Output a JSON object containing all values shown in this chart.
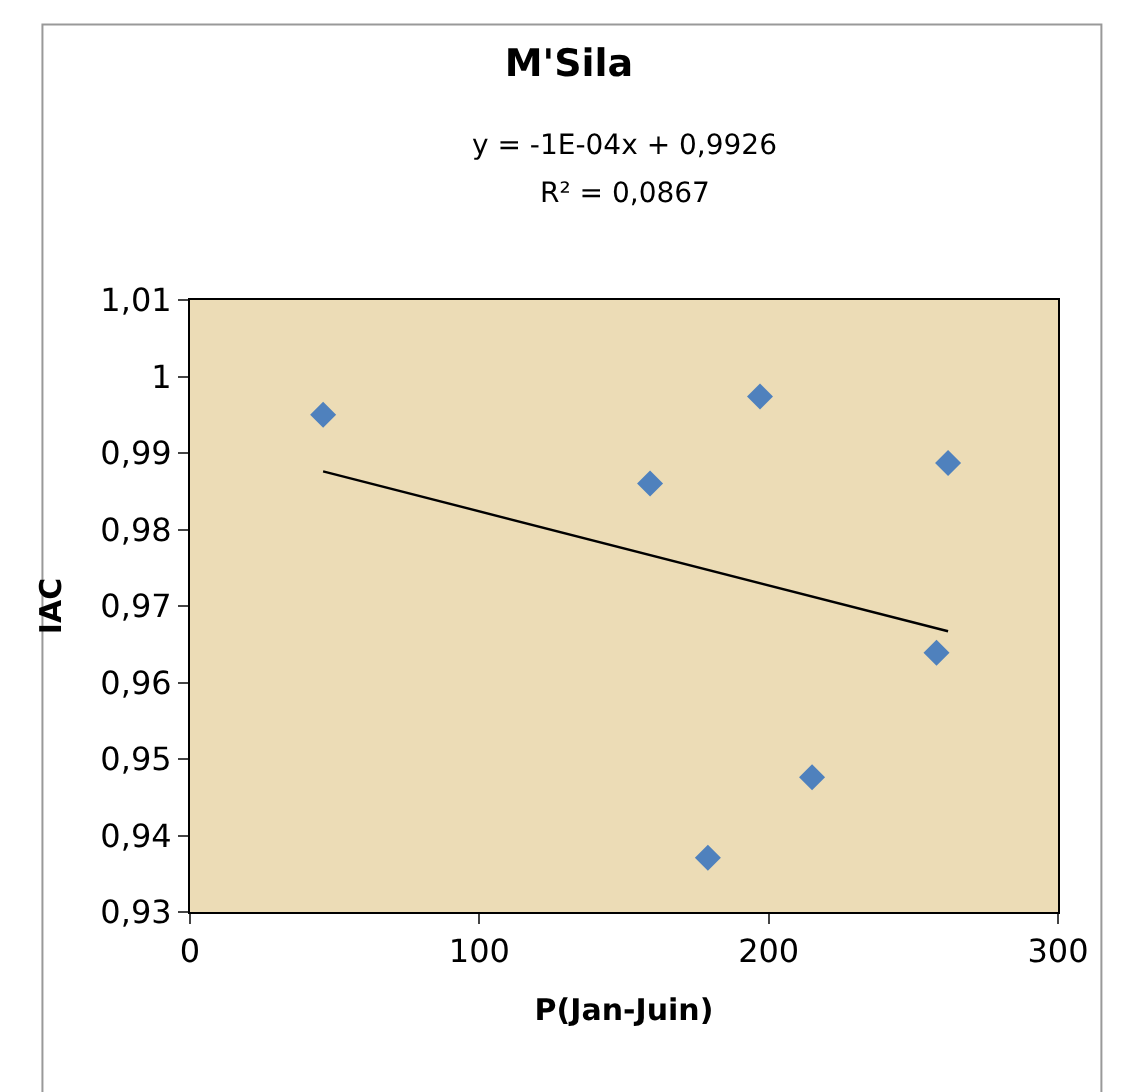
{
  "chart_data": {
    "type": "scatter",
    "title": "M'Sila",
    "xlabel": "P(Jan-Juin)",
    "ylabel": "IAC",
    "annotations": [
      "y = -1E-04x + 0,9926",
      "R² = 0,0867"
    ],
    "marker": "diamond",
    "grid": false,
    "xlim": [
      0,
      300
    ],
    "xticks": [
      0,
      100,
      200,
      300
    ],
    "ylim": [
      0.93,
      1.01
    ],
    "yticks": [
      {
        "value": 0.93,
        "label": "0,93"
      },
      {
        "value": 0.94,
        "label": "0,94"
      },
      {
        "value": 0.95,
        "label": "0,95"
      },
      {
        "value": 0.96,
        "label": "0,96"
      },
      {
        "value": 0.97,
        "label": "0,97"
      },
      {
        "value": 0.98,
        "label": "0,98"
      },
      {
        "value": 0.99,
        "label": "0,99"
      },
      {
        "value": 1,
        "label": "1"
      },
      {
        "value": 1.01,
        "label": "1,01"
      }
    ],
    "series": [
      {
        "color": "#4f81bd",
        "x": [
          46,
          159,
          197,
          262,
          258,
          215,
          179
        ],
        "values": [
          0.995,
          0.986,
          0.9974,
          0.9887,
          0.9639,
          0.9476,
          0.9371
        ]
      },
      {
        "type": "line",
        "marker": "none",
        "color": "#000000",
        "x": [
          46,
          262
        ],
        "values": [
          0.9876,
          0.9667
        ]
      }
    ]
  }
}
